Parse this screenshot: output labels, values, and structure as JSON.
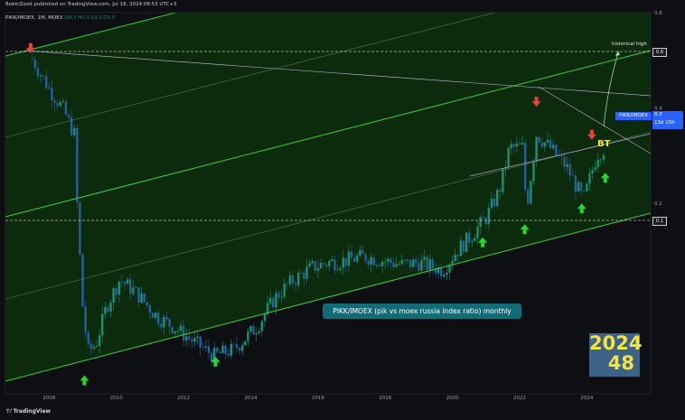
{
  "header": {
    "publisher": "BobinZood published on TradingView.com, Jul 18, 2024 08:53 UTC+3",
    "symbol_line": "PIKK/IMOEX, 1M, MOEX",
    "ohlc": "O0.3  H0.3  L0.3  C0.3"
  },
  "footer": {
    "brand": "TradingView"
  },
  "annotations": {
    "title_box": "PIKK/IMOEX (pik vs moex russia index ratio) monthly",
    "historical_high": "historical high",
    "bt": "BT",
    "year_line1": "2024",
    "year_line2": "48",
    "price_tag_symbol": "PIKK/IMOEX",
    "price_tag_value": "0.3",
    "price_tag_countdown": "13d 15h",
    "ref_high": "0.6",
    "ref_low": "0.1"
  },
  "colors": {
    "background": "#0d0f13",
    "channel_fill": "#0c2a0c",
    "channel_line": "#3fcf3f",
    "candle_up": "#1f8f72",
    "candle_down": "#2a5d9e",
    "arrow_up": "#2ed42e",
    "arrow_down": "#e0443a",
    "accent": "#2962ff"
  },
  "chart_data": {
    "type": "candlestick",
    "title": "",
    "xlabel": "",
    "ylabel": "",
    "y_scale": "log",
    "ylim": [
      0.05,
      0.8
    ],
    "xlim": [
      2006.7,
      2025.9
    ],
    "x_ticks": [
      "2008",
      "2010",
      "2012",
      "2014",
      "2016",
      "2018",
      "2020",
      "2022",
      "2024"
    ],
    "y_ticks": [
      "0.8",
      "0.6",
      "0.4",
      "0.3",
      "0.2",
      "0.1"
    ],
    "reference_lines": [
      {
        "label": "0.6",
        "value": 0.57
      },
      {
        "label": "0.1",
        "value": 0.102
      }
    ],
    "series": [
      {
        "values": [
          [
            2007.5,
            0.57
          ],
          [
            2008.0,
            0.46
          ],
          [
            2008.4,
            0.4
          ],
          [
            2008.75,
            0.33
          ],
          [
            2008.85,
            0.18
          ],
          [
            2009.0,
            0.095
          ],
          [
            2009.15,
            0.068
          ],
          [
            2009.4,
            0.072
          ],
          [
            2009.7,
            0.094
          ],
          [
            2010.1,
            0.115
          ],
          [
            2010.6,
            0.104
          ],
          [
            2011.2,
            0.088
          ],
          [
            2011.8,
            0.08
          ],
          [
            2012.3,
            0.073
          ],
          [
            2012.9,
            0.066
          ],
          [
            2013.5,
            0.069
          ],
          [
            2014.2,
            0.082
          ],
          [
            2014.7,
            0.1
          ],
          [
            2015.2,
            0.113
          ],
          [
            2015.8,
            0.125
          ],
          [
            2016.3,
            0.13
          ],
          [
            2016.8,
            0.132
          ],
          [
            2017.4,
            0.136
          ],
          [
            2017.9,
            0.132
          ],
          [
            2018.5,
            0.128
          ],
          [
            2019.0,
            0.13
          ],
          [
            2019.7,
            0.123
          ],
          [
            2020.1,
            0.14
          ],
          [
            2020.6,
            0.16
          ],
          [
            2021.0,
            0.18
          ],
          [
            2021.4,
            0.22
          ],
          [
            2021.7,
            0.3
          ],
          [
            2022.1,
            0.3
          ],
          [
            2022.2,
            0.19
          ],
          [
            2022.5,
            0.33
          ],
          [
            2022.9,
            0.3
          ],
          [
            2023.4,
            0.26
          ],
          [
            2023.9,
            0.205
          ],
          [
            2024.3,
            0.285
          ],
          [
            2024.55,
            0.3
          ]
        ]
      }
    ],
    "annotations": [
      {
        "type": "arrow-down",
        "x": 2007.45,
        "y": 0.62
      },
      {
        "type": "arrow-down",
        "x": 2022.5,
        "y": 0.42
      },
      {
        "type": "arrow-down",
        "x": 2024.15,
        "y": 0.33
      },
      {
        "type": "arrow-up",
        "x": 2009.05,
        "y": 0.055
      },
      {
        "type": "arrow-up",
        "x": 2012.95,
        "y": 0.063
      },
      {
        "type": "arrow-up",
        "x": 2020.9,
        "y": 0.15
      },
      {
        "type": "arrow-up",
        "x": 2022.15,
        "y": 0.165
      },
      {
        "type": "arrow-up",
        "x": 2023.85,
        "y": 0.192
      },
      {
        "type": "arrow-up",
        "x": 2024.55,
        "y": 0.24
      }
    ]
  }
}
